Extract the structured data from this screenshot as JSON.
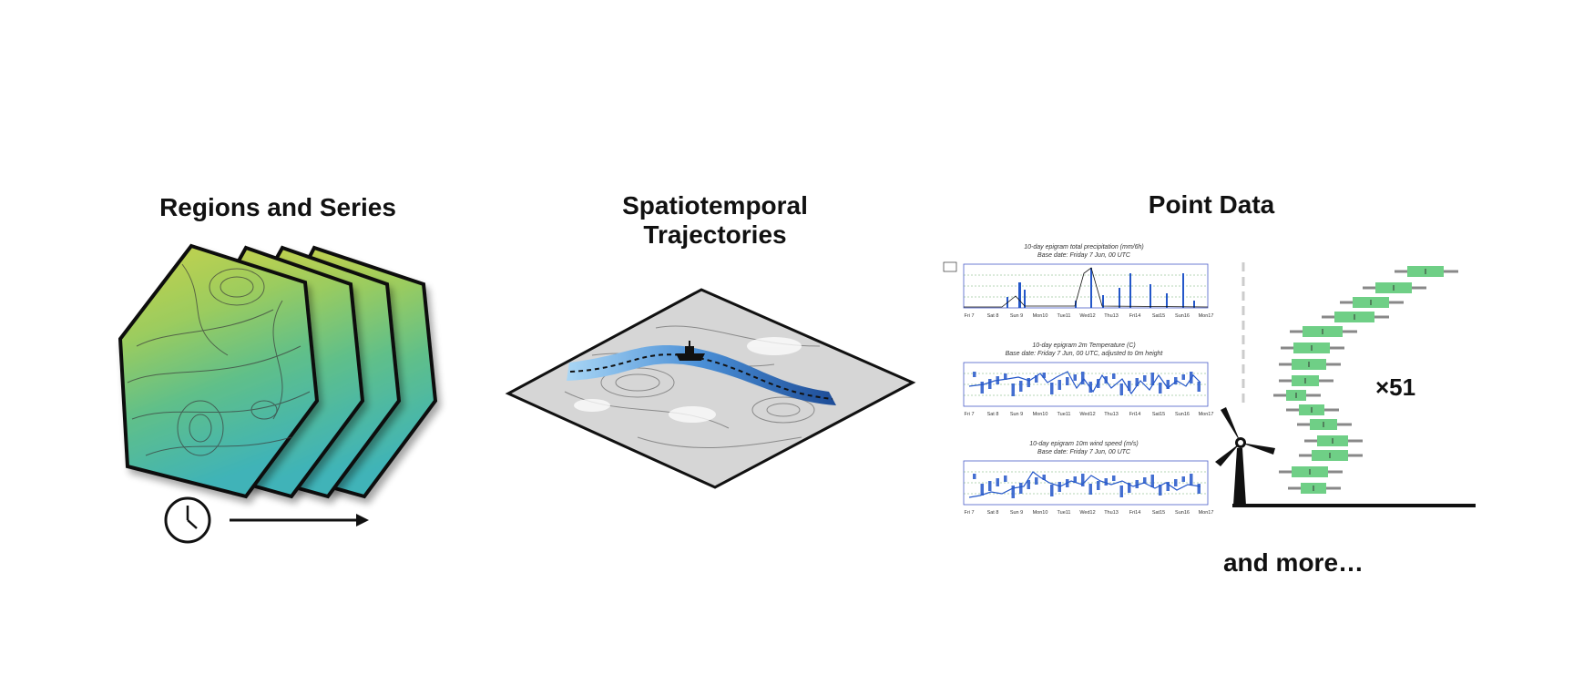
{
  "panels": {
    "regions": {
      "title": "Regions and Series"
    },
    "trajectories": {
      "title_line1": "Spatiotemporal",
      "title_line2": "Trajectories"
    },
    "point": {
      "title": "Point Data",
      "ensemble_label": "×51"
    }
  },
  "footer": {
    "more_label": "and more…"
  },
  "epigrams": {
    "precip": {
      "title": "10-day epigram total precipitation (mm/6h)",
      "subtitle": "Base date: Friday 7 Jun, 00 UTC"
    },
    "temp": {
      "title": "10-day epigram 2m Temperature (C)",
      "subtitle": "Base date: Friday 7 Jun, 00 UTC, adjusted to 0m height"
    },
    "wind": {
      "title": "10-day epigram 10m wind speed (m/s)",
      "subtitle": "Base date: Friday 7 Jun, 00 UTC"
    },
    "day_ticks": [
      "Fri 7",
      "Sat 8",
      "Sun 9",
      "Mon10",
      "Tue11",
      "Wed12",
      "Thu13",
      "Fri14",
      "Sat15",
      "Sun16",
      "Mon17"
    ]
  },
  "colors": {
    "map_green": "#7fc46b",
    "map_yellow": "#d8d84a",
    "map_teal": "#46b8a0",
    "ribbon_light": "#8ec8f0",
    "ribbon_dark": "#1e4f9a",
    "box_green": "#6fcf86",
    "whisker_gray": "#888888",
    "plot_blue": "#2457c9"
  }
}
